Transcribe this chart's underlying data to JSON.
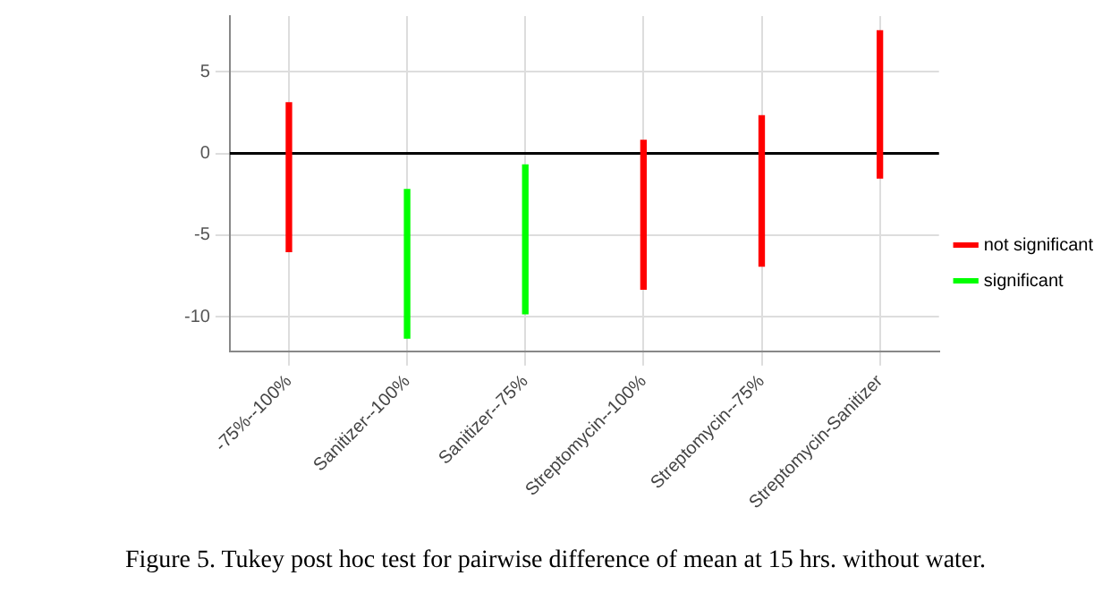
{
  "chart_data": {
    "type": "bar",
    "title": "Figure 5. Tukey post hoc test for pairwise difference of mean at 15 hrs. without water.",
    "categories": [
      "-75%--100%",
      "Sanitizer--100%",
      "Sanitizer--75%",
      "Streptomycin--100%",
      "Streptomycin--75%",
      "Streptomycin-Sanitizer"
    ],
    "series": [
      {
        "name": "not significant",
        "color": "#ff0000",
        "base": [
          -6.0,
          null,
          null,
          -8.3,
          -6.9,
          -1.5
        ],
        "values": [
          9.1,
          null,
          null,
          9.1,
          9.2,
          9.0
        ]
      },
      {
        "name": "significant",
        "color": "#00ff00",
        "base": [
          null,
          -11.3,
          -9.8,
          null,
          null,
          null
        ],
        "values": [
          null,
          9.1,
          9.1,
          null,
          null,
          null
        ]
      }
    ],
    "ylim": [
      -12.1,
      8.4
    ],
    "yticks": [
      -10,
      -5,
      0,
      5
    ],
    "ref_lines": [
      {
        "axis": "y",
        "value": 0,
        "color": "#000000"
      }
    ],
    "grid": true,
    "legend": "right"
  }
}
